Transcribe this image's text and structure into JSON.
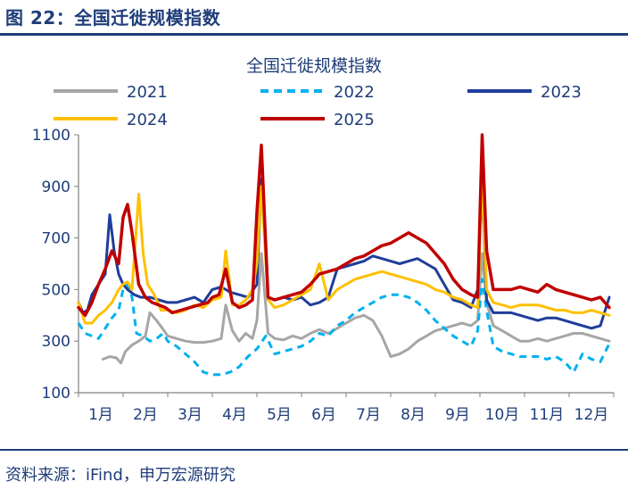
{
  "figure_title": "图 22：全国迁徙规模指数",
  "source": "资料来源：iFind，申万宏源研究",
  "chart_data": {
    "type": "line",
    "title": "全国迁徙规模指数",
    "xlabel": "",
    "ylabel": "",
    "ylim": [
      100,
      1100
    ],
    "yticks": [
      100,
      300,
      500,
      700,
      900,
      1100
    ],
    "xlim": [
      1,
      13
    ],
    "xticks": [
      {
        "label": "1月",
        "x": 1
      },
      {
        "label": "2月",
        "x": 2
      },
      {
        "label": "3月",
        "x": 3
      },
      {
        "label": "4月",
        "x": 4
      },
      {
        "label": "5月",
        "x": 5
      },
      {
        "label": "6月",
        "x": 6
      },
      {
        "label": "7月",
        "x": 7
      },
      {
        "label": "8月",
        "x": 8
      },
      {
        "label": "9月",
        "x": 9
      },
      {
        "label": "10月",
        "x": 10
      },
      {
        "label": "11月",
        "x": 11
      },
      {
        "label": "12月",
        "x": 12
      }
    ],
    "grid": false,
    "legend_position": "top",
    "series": [
      {
        "name": "2021",
        "color": "#a6a6a6",
        "dash": "solid",
        "x": [
          1.55,
          1.7,
          1.85,
          1.95,
          2.05,
          2.2,
          2.35,
          2.5,
          2.6,
          2.75,
          2.9,
          3.0,
          3.2,
          3.4,
          3.6,
          3.8,
          4.0,
          4.2,
          4.3,
          4.45,
          4.6,
          4.75,
          4.9,
          5.0,
          5.1,
          5.25,
          5.4,
          5.6,
          5.8,
          6.0,
          6.2,
          6.4,
          6.6,
          6.8,
          7.0,
          7.2,
          7.4,
          7.6,
          7.8,
          8.0,
          8.2,
          8.4,
          8.6,
          8.8,
          9.0,
          9.2,
          9.4,
          9.6,
          9.8,
          9.95,
          10.05,
          10.15,
          10.3,
          10.5,
          10.7,
          10.9,
          11.1,
          11.3,
          11.5,
          11.7,
          11.9,
          12.1,
          12.3,
          12.5,
          12.7,
          12.9
        ],
        "y": [
          230,
          240,
          235,
          215,
          260,
          285,
          300,
          320,
          410,
          380,
          345,
          320,
          310,
          300,
          295,
          295,
          300,
          310,
          440,
          340,
          300,
          330,
          310,
          380,
          640,
          330,
          310,
          305,
          320,
          310,
          330,
          345,
          330,
          350,
          370,
          390,
          400,
          380,
          320,
          240,
          250,
          270,
          300,
          320,
          340,
          350,
          360,
          370,
          360,
          380,
          640,
          450,
          360,
          340,
          320,
          300,
          300,
          310,
          300,
          310,
          320,
          330,
          330,
          320,
          310,
          300
        ]
      },
      {
        "name": "2022",
        "color": "#00b0f0",
        "dash": "8,6",
        "x": [
          1.0,
          1.15,
          1.3,
          1.45,
          1.6,
          1.75,
          1.9,
          2.0,
          2.1,
          2.2,
          2.3,
          2.45,
          2.6,
          2.75,
          2.9,
          3.0,
          3.2,
          3.4,
          3.6,
          3.8,
          4.0,
          4.2,
          4.4,
          4.6,
          4.8,
          5.0,
          5.2,
          5.4,
          5.6,
          5.8,
          6.0,
          6.2,
          6.4,
          6.6,
          6.8,
          7.0,
          7.2,
          7.4,
          7.6,
          7.8,
          8.0,
          8.2,
          8.4,
          8.6,
          8.8,
          9.0,
          9.2,
          9.4,
          9.6,
          9.8,
          9.95,
          10.05,
          10.15,
          10.3,
          10.5,
          10.7,
          10.9,
          11.1,
          11.3,
          11.5,
          11.7,
          11.9,
          12.1,
          12.3,
          12.5,
          12.7,
          12.9
        ],
        "y": [
          370,
          330,
          320,
          310,
          350,
          390,
          420,
          500,
          520,
          470,
          330,
          320,
          300,
          310,
          330,
          300,
          280,
          250,
          220,
          180,
          170,
          170,
          180,
          200,
          240,
          270,
          320,
          250,
          260,
          270,
          280,
          300,
          330,
          320,
          360,
          380,
          410,
          430,
          450,
          470,
          480,
          480,
          470,
          450,
          420,
          380,
          350,
          320,
          300,
          280,
          340,
          540,
          420,
          280,
          260,
          250,
          240,
          240,
          240,
          230,
          240,
          220,
          180,
          250,
          230,
          220,
          290
        ]
      },
      {
        "name": "2023",
        "color": "#1f3d9a",
        "dash": "solid",
        "x": [
          1.0,
          1.1,
          1.2,
          1.3,
          1.45,
          1.6,
          1.7,
          1.8,
          1.9,
          2.0,
          2.1,
          2.25,
          2.4,
          2.6,
          2.8,
          3.0,
          3.2,
          3.4,
          3.6,
          3.8,
          4.0,
          4.2,
          4.4,
          4.6,
          4.8,
          5.0,
          5.1,
          5.25,
          5.4,
          5.6,
          5.8,
          6.0,
          6.2,
          6.4,
          6.6,
          6.8,
          7.0,
          7.2,
          7.4,
          7.6,
          7.8,
          8.0,
          8.2,
          8.4,
          8.6,
          8.8,
          9.0,
          9.2,
          9.4,
          9.6,
          9.8,
          9.95,
          10.05,
          10.15,
          10.3,
          10.5,
          10.7,
          10.9,
          11.1,
          11.3,
          11.5,
          11.7,
          11.9,
          12.1,
          12.3,
          12.5,
          12.7,
          12.9
        ],
        "y": [
          450,
          410,
          420,
          480,
          520,
          560,
          790,
          650,
          560,
          520,
          500,
          480,
          470,
          470,
          460,
          450,
          450,
          460,
          470,
          450,
          500,
          510,
          490,
          480,
          470,
          520,
          930,
          470,
          460,
          470,
          460,
          470,
          440,
          450,
          470,
          580,
          590,
          600,
          610,
          630,
          620,
          610,
          600,
          610,
          620,
          600,
          580,
          520,
          460,
          450,
          430,
          500,
          920,
          460,
          410,
          410,
          410,
          400,
          390,
          380,
          390,
          390,
          380,
          370,
          360,
          350,
          360,
          470
        ]
      },
      {
        "name": "2024",
        "color": "#ffc000",
        "dash": "solid",
        "x": [
          1.0,
          1.15,
          1.3,
          1.45,
          1.6,
          1.75,
          1.9,
          2.0,
          2.1,
          2.2,
          2.35,
          2.45,
          2.55,
          2.7,
          2.85,
          3.0,
          3.2,
          3.4,
          3.6,
          3.8,
          4.0,
          4.2,
          4.3,
          4.45,
          4.6,
          4.75,
          4.9,
          5.0,
          5.1,
          5.25,
          5.4,
          5.6,
          5.8,
          6.0,
          6.2,
          6.4,
          6.6,
          6.8,
          7.0,
          7.2,
          7.4,
          7.6,
          7.8,
          8.0,
          8.2,
          8.4,
          8.6,
          8.8,
          9.0,
          9.2,
          9.4,
          9.6,
          9.8,
          9.95,
          10.05,
          10.15,
          10.3,
          10.5,
          10.7,
          10.9,
          11.1,
          11.3,
          11.5,
          11.7,
          11.9,
          12.1,
          12.3,
          12.5,
          12.7,
          12.9
        ],
        "y": [
          450,
          370,
          370,
          400,
          420,
          450,
          500,
          520,
          530,
          500,
          870,
          640,
          520,
          480,
          420,
          420,
          410,
          420,
          440,
          430,
          460,
          470,
          650,
          440,
          440,
          460,
          500,
          600,
          900,
          460,
          430,
          440,
          460,
          480,
          500,
          600,
          460,
          500,
          520,
          540,
          550,
          560,
          570,
          560,
          550,
          540,
          530,
          520,
          500,
          490,
          470,
          460,
          440,
          430,
          930,
          500,
          450,
          440,
          430,
          440,
          440,
          440,
          430,
          420,
          420,
          410,
          410,
          420,
          410,
          400
        ]
      },
      {
        "name": "2025",
        "color": "#c00000",
        "dash": "solid",
        "x": [
          1.0,
          1.15,
          1.3,
          1.45,
          1.6,
          1.75,
          1.9,
          2.0,
          2.1,
          2.2,
          2.35,
          2.5,
          2.65,
          2.8,
          2.95,
          3.1,
          3.3,
          3.5,
          3.7,
          3.9,
          4.0,
          4.15,
          4.3,
          4.45,
          4.6,
          4.75,
          4.9,
          5.0,
          5.1,
          5.25,
          5.4,
          5.6,
          5.8,
          6.0,
          6.2,
          6.4,
          6.6,
          6.8,
          7.0,
          7.2,
          7.4,
          7.6,
          7.8,
          8.0,
          8.2,
          8.4,
          8.6,
          8.8,
          9.0,
          9.2,
          9.4,
          9.6,
          9.8,
          9.95,
          10.05,
          10.15,
          10.3,
          10.5,
          10.7,
          10.9,
          11.1,
          11.3,
          11.5,
          11.7,
          11.9,
          12.1,
          12.3,
          12.5,
          12.7,
          12.9
        ],
        "y": [
          430,
          400,
          450,
          520,
          580,
          650,
          600,
          780,
          830,
          720,
          520,
          470,
          450,
          440,
          430,
          410,
          420,
          430,
          440,
          450,
          470,
          480,
          580,
          450,
          430,
          440,
          460,
          800,
          1060,
          470,
          460,
          470,
          480,
          490,
          520,
          560,
          570,
          580,
          600,
          620,
          630,
          650,
          670,
          680,
          700,
          720,
          700,
          680,
          640,
          600,
          540,
          500,
          480,
          470,
          1100,
          650,
          500,
          500,
          500,
          510,
          500,
          490,
          520,
          500,
          490,
          480,
          470,
          460,
          470,
          430
        ]
      }
    ]
  }
}
